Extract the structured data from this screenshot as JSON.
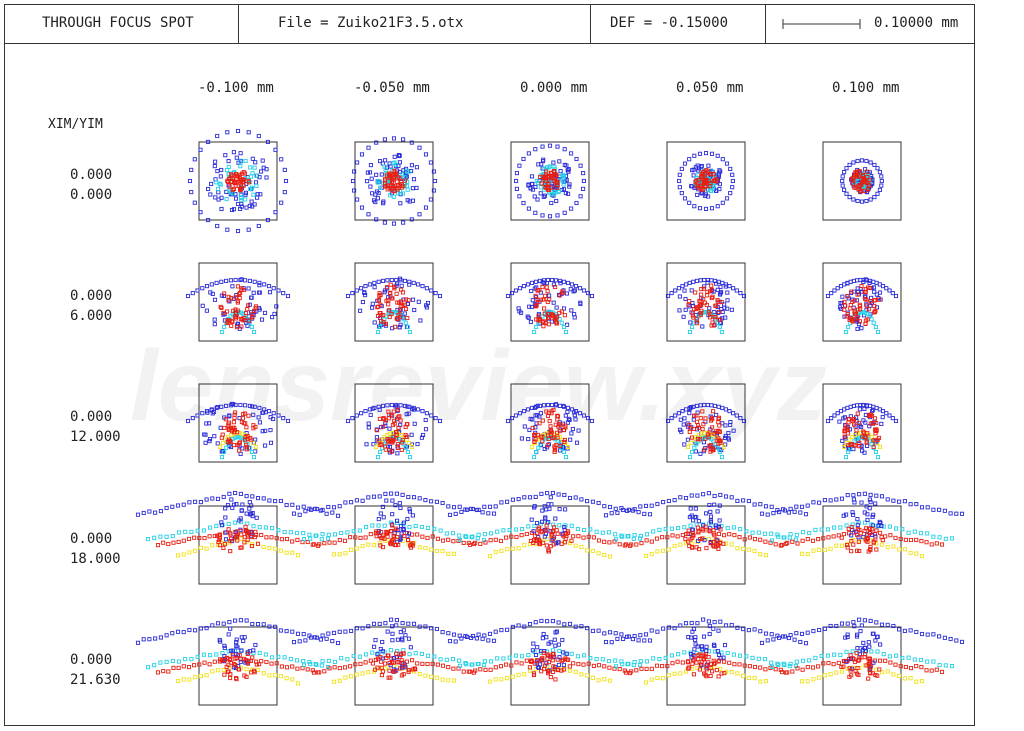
{
  "header": {
    "title": "THROUGH FOCUS SPOT",
    "file_label": "File = Zuiko21F3.5.otx",
    "def_label": "DEF = -0.15000",
    "scale_label": "0.10000 mm"
  },
  "row_header": "XIM/YIM",
  "columns": [
    "-0.100  mm",
    "-0.050  mm",
    "0.000  mm",
    "0.050  mm",
    "0.100  mm"
  ],
  "rows": [
    {
      "xim": "0.000",
      "yim": "0.000"
    },
    {
      "xim": "0.000",
      "yim": "6.000"
    },
    {
      "xim": "0.000",
      "yim": "12.000"
    },
    {
      "xim": "0.000",
      "yim": "18.000"
    },
    {
      "xim": "0.000",
      "yim": "21.630"
    }
  ],
  "colors": {
    "wavelength_1": "#2b2bd8",
    "wavelength_2": "#22d0e6",
    "wavelength_3": "#f2e21a",
    "wavelength_4": "#e81e12",
    "frame": "#333333"
  },
  "watermark": "lensreview.xyz"
}
